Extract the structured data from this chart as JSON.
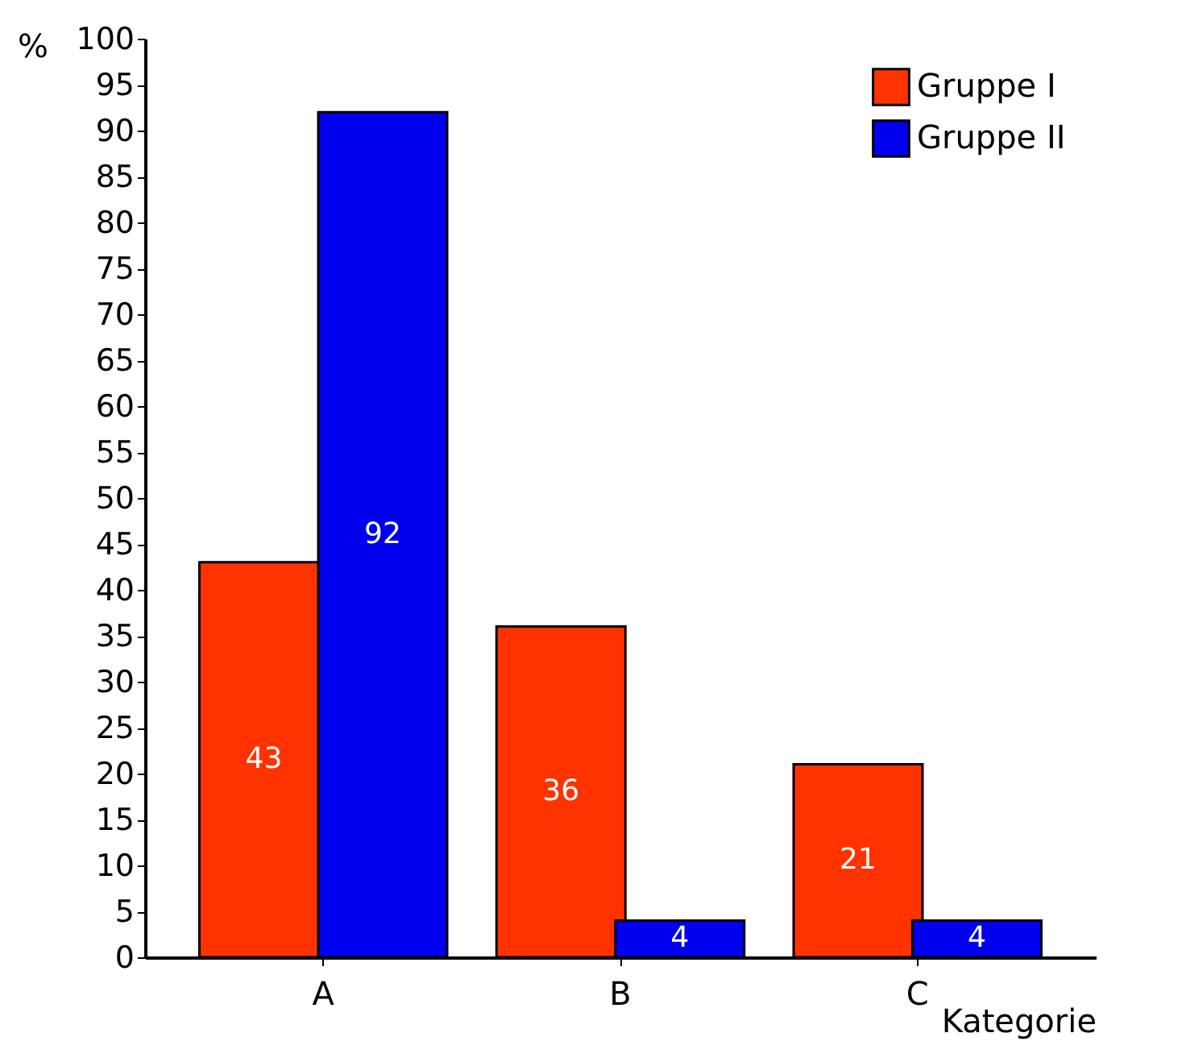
{
  "chart_data": {
    "type": "bar",
    "xlabel": "Kategorie",
    "ylabel": "%",
    "categories": [
      "A",
      "B",
      "C"
    ],
    "series": [
      {
        "name": "Gruppe I",
        "color": "#ff3300",
        "values": [
          43,
          36,
          21
        ]
      },
      {
        "name": "Gruppe II",
        "color": "#0000ee",
        "values": [
          92,
          4,
          4
        ]
      }
    ],
    "ylim": [
      0,
      100
    ],
    "yticks": [
      0,
      5,
      10,
      15,
      20,
      25,
      30,
      35,
      40,
      45,
      50,
      55,
      60,
      65,
      70,
      75,
      80,
      85,
      90,
      95,
      100
    ],
    "data_labels": true,
    "grid": false,
    "legend": "top right"
  }
}
